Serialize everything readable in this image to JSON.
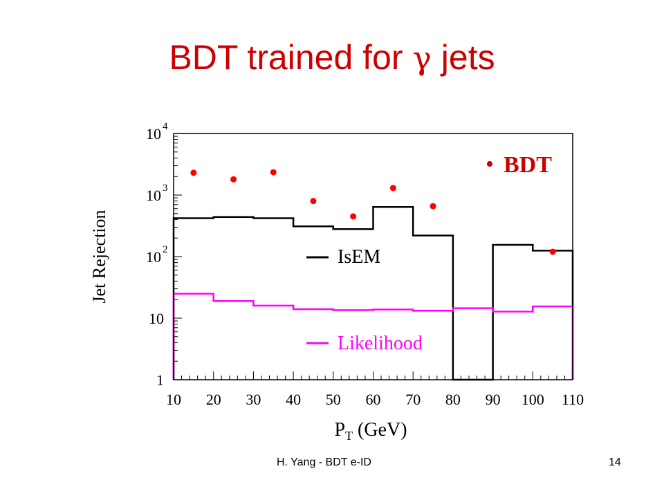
{
  "slide": {
    "title_before": "BDT trained for ",
    "title_symbol": "γ",
    "title_after": " jets",
    "footer_text": "H. Yang - BDT e-ID",
    "page_number": "14"
  },
  "colors": {
    "title": "#cc0000",
    "isem": "#000000",
    "likelihood": "#ff00ff",
    "bdt": "#ff0000",
    "legend_bdt": "#cc0000"
  },
  "chart_data": {
    "type": "scatter",
    "xlabel": "P",
    "xlabel_sub": "T",
    "xlabel_suffix": " (GeV)",
    "ylabel": "Jet Rejection",
    "xlim": [
      10,
      110
    ],
    "ylim": [
      1,
      10000
    ],
    "yscale": "log",
    "x_ticks": [
      "10",
      "20",
      "30",
      "40",
      "50",
      "60",
      "70",
      "80",
      "90",
      "100",
      "110"
    ],
    "y_ticks": [
      {
        "value": 1,
        "base": "1",
        "exp": ""
      },
      {
        "value": 10,
        "base": "10",
        "exp": ""
      },
      {
        "value": 100,
        "base": "10",
        "exp": "2"
      },
      {
        "value": 1000,
        "base": "10",
        "exp": "3"
      },
      {
        "value": 10000,
        "base": "10",
        "exp": "4"
      }
    ],
    "grid": false,
    "bin_edges": [
      10,
      20,
      30,
      40,
      50,
      60,
      70,
      80,
      90,
      100,
      110
    ],
    "series": [
      {
        "name": "IsEM",
        "kind": "histogram",
        "values": [
          420,
          440,
          420,
          310,
          280,
          640,
          220,
          1,
          155,
          125
        ]
      },
      {
        "name": "Likelihood",
        "kind": "histogram",
        "values": [
          25,
          19,
          16,
          14,
          13.5,
          13.8,
          13.2,
          14.5,
          12.8,
          15.5
        ]
      },
      {
        "name": "BDT",
        "kind": "points",
        "x": [
          15,
          25,
          35,
          45,
          55,
          65,
          75,
          105
        ],
        "y": [
          2300,
          1800,
          2350,
          800,
          450,
          1300,
          660,
          120
        ]
      }
    ],
    "legend": [
      {
        "label": "BDT",
        "marker": "•"
      },
      {
        "label": "IsEM",
        "marker": "line"
      },
      {
        "label": "Likelihood",
        "marker": "line"
      }
    ]
  }
}
